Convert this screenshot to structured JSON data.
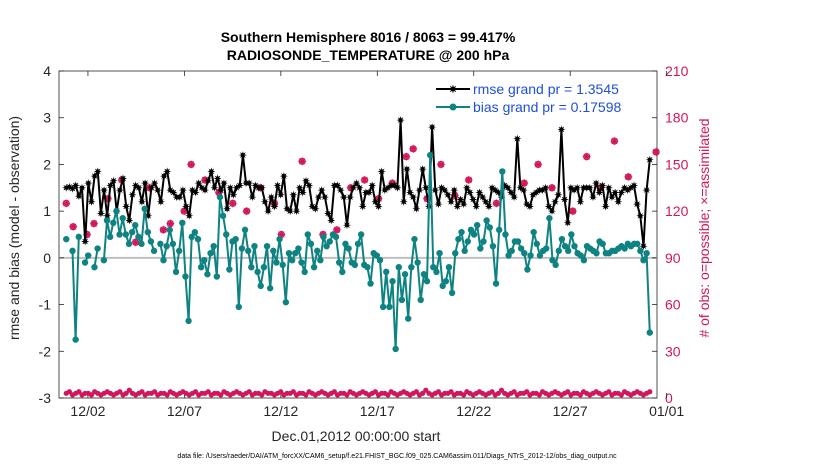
{
  "chart_data": {
    "type": "line",
    "title_line1": "Southern Hemisphere 8016 / 8063 = 99.417%",
    "title_line2": "RADIOSONDE_TEMPERATURE @ 200 hPa",
    "xlabel": "Dec.01,2012 00:00:00 start",
    "ylabel": "rmse and bias (model - observation)",
    "ylabel_right": "# of obs: o=possible; ×=assimilated",
    "footer": "data file: /Users/raeder/DAI/ATM_forcXX/CAM6_setup/f.e21.FHIST_BGC.f09_025.CAM6assim.011/Diags_NTrS_2012-12/obs_diag_output.nc",
    "xlim": [
      0.5,
      31.5
    ],
    "ylim": [
      -3,
      4
    ],
    "ylim_right": [
      0,
      210
    ],
    "x_tick_values": [
      2,
      7,
      12,
      17,
      22,
      27,
      32
    ],
    "x_tick_labels": [
      "12/02",
      "12/07",
      "12/12",
      "12/17",
      "12/22",
      "12/27",
      "01/01"
    ],
    "y_ticks": [
      -3,
      -2,
      -1,
      0,
      1,
      2,
      3,
      4
    ],
    "y_ticks_right": [
      0,
      30,
      60,
      90,
      120,
      150,
      180,
      210
    ],
    "zero_line": 0,
    "colors": {
      "rmse": "#000000",
      "bias": "#0f8282",
      "obs": "#d1175c",
      "zero": "#bfbfbf",
      "legend_text": "#1f4fd8"
    },
    "series": [
      {
        "name": "rmse grand pr = 1.3545",
        "color": "#000000",
        "values": [
          1.5,
          1.52,
          1.48,
          1.55,
          1.32,
          1.5,
          0.35,
          1.6,
          1.2,
          1.75,
          1.85,
          0.95,
          1.45,
          0.9,
          1.55,
          1.65,
          1.0,
          1.45,
          1.7,
          1.1,
          0.8,
          1.35,
          1.55,
          1.5,
          1.2,
          1.6,
          0.9,
          1.5,
          1.6,
          1.45,
          1.2,
          1.75,
          1.85,
          1.45,
          1.4,
          1.3,
          1.3,
          1.45,
          1.1,
          0.9,
          1.45,
          1.4,
          1.6,
          1.5,
          1.45,
          1.65,
          1.85,
          1.5,
          1.7,
          1.45,
          1.6,
          1.05,
          1.5,
          1.35,
          1.5,
          1.55,
          2.2,
          1.6,
          1.6,
          1.3,
          1.55,
          1.5,
          1.5,
          1.2,
          1.0,
          1.3,
          1.1,
          1.55,
          1.35,
          1.75,
          1.05,
          1.0,
          1.35,
          1.0,
          1.5,
          1.4,
          1.65,
          1.55,
          1.1,
          1.05,
          1.3,
          1.45,
          1.3,
          0.95,
          0.8,
          1.55,
          1.55,
          1.45,
          1.3,
          0.7,
          1.3,
          1.5,
          1.6,
          1.5,
          1.1,
          1.4,
          1.4,
          1.55,
          1.2,
          1.1,
          1.85,
          1.45,
          1.5,
          1.55,
          1.55,
          1.5,
          2.95,
          1.2,
          1.9,
          1.4,
          1.3,
          1.05,
          1.45,
          1.9,
          1.5,
          1.1,
          2.8,
          1.45,
          1.15,
          1.5,
          1.45,
          1.35,
          1.2,
          1.45,
          1.1,
          1.25,
          1.15,
          1.5,
          1.4,
          1.25,
          1.1,
          1.4,
          1.3,
          1.2,
          1.1,
          1.5,
          1.45,
          1.4,
          1.3,
          1.55,
          1.5,
          1.4,
          1.3,
          2.55,
          1.5,
          1.45,
          1.15,
          1.1,
          1.35,
          1.4,
          1.45,
          1.45,
          1.5,
          1.1,
          1.0,
          1.2,
          1.35,
          2.75,
          1.25,
          0.75,
          1.5,
          1.45,
          1.5,
          1.2,
          1.5,
          1.5,
          1.5,
          1.3,
          1.6,
          1.4,
          1.55,
          1.1,
          1.5,
          1.3,
          1.4,
          1.2,
          1.4,
          1.5,
          1.45,
          1.5,
          1.55,
          1.15,
          0.9,
          0.25,
          1.45,
          2.1
        ]
      },
      {
        "name": "bias grand pr = 0.17598",
        "color": "#0f8282",
        "values": [
          0.4,
          null,
          0.15,
          -1.75,
          0.45,
          null,
          -0.1,
          0.05,
          null,
          -0.2,
          0.2,
          null,
          -0.05,
          0.8,
          0.45,
          0.75,
          1.0,
          0.5,
          0.85,
          0.5,
          0.3,
          0.55,
          0.7,
          0.45,
          0.3,
          1.05,
          0.55,
          0.35,
          0.15,
          null,
          0.3,
          -0.05,
          0.25,
          0.6,
          0.3,
          -0.3,
          0.15,
          0.75,
          -0.4,
          -1.35,
          0.45,
          0.55,
          0.4,
          -0.2,
          -0.05,
          -0.35,
          0.1,
          0.25,
          -0.4,
          1.3,
          0.9,
          0.5,
          -0.25,
          0.35,
          0.4,
          -1.05,
          0.2,
          0.6,
          0.15,
          -0.2,
          0.25,
          -0.3,
          -0.6,
          -0.2,
          0.25,
          -0.65,
          0.15,
          -0.1,
          0.4,
          -0.15,
          -0.95,
          0.1,
          -0.05,
          0.1,
          0.2,
          -0.1,
          -0.3,
          0.5,
          0.3,
          -0.2,
          0.15,
          -0.05,
          0.45,
          0.25,
          0.35,
          0.5,
          0.45,
          -0.1,
          -0.3,
          0.3,
          0.2,
          -0.1,
          -0.15,
          0.3,
          0.5,
          -0.15,
          -0.2,
          -0.55,
          0.1,
          0.05,
          -0.05,
          -1.05,
          -0.3,
          -1.05,
          -0.5,
          -1.95,
          -0.2,
          -0.9,
          -0.35,
          -1.3,
          -0.2,
          0.4,
          -0.1,
          -0.9,
          -0.35,
          -0.5,
          2.2,
          -0.2,
          -0.3,
          0.1,
          -0.6,
          -0.5,
          -0.2,
          -0.75,
          0.1,
          0.4,
          0.55,
          0.15,
          0.35,
          0.6,
          0.5,
          0.7,
          0.2,
          0.35,
          0.8,
          0.65,
          0.25,
          -0.55,
          0.6,
          1.85,
          0.5,
          0.05,
          0.15,
          0.35,
          0.35,
          0.2,
          0.1,
          -0.25,
          0.05,
          0.55,
          0.3,
          0.05,
          0.15,
          0.2,
          0.85,
          -0.05,
          -0.15,
          0.15,
          0.4,
          0.25,
          0.15,
          0.5,
          0.25,
          0.1,
          0.05,
          -0.05,
          0.25,
          0.2,
          0.15,
          0.1,
          0.35,
          0.3,
          0.1,
          0.1,
          0.15,
          0.15,
          0.2,
          0.25,
          0.2,
          0.3,
          0.25,
          0.3,
          0.3,
          0.15,
          -0.05,
          0.1,
          -1.6
        ]
      }
    ],
    "obs_possible": [
      125,
      110,
      null,
      105,
      112,
      null,
      128,
      null,
      140,
      null,
      100,
      null,
      135,
      null,
      108,
      112,
      null,
      120,
      150,
      null,
      140,
      null,
      132,
      null,
      125,
      null,
      120,
      null,
      135,
      null,
      125,
      105,
      null,
      null,
      152,
      null,
      null,
      105,
      null,
      108,
      null,
      135,
      null,
      140,
      null,
      128,
      null,
      138,
      null,
      155,
      160,
      null,
      128,
      null,
      150,
      null,
      130,
      null,
      140,
      null,
      null,
      null,
      125,
      null,
      null,
      null,
      138,
      null,
      150,
      null,
      135,
      null,
      null,
      120,
      null,
      155,
      null,
      135,
      null,
      165,
      null,
      142,
      null,
      null,
      null,
      158,
      null,
      null,
      null,
      null,
      null,
      null,
      null,
      null,
      null,
      null,
      null,
      null,
      null,
      null,
      null,
      null,
      null,
      null,
      null,
      null,
      null,
      null,
      null,
      null,
      null,
      null,
      null,
      null,
      null,
      null,
      null,
      null,
      null,
      null,
      null,
      null,
      null,
      null,
      null,
      null,
      null,
      null,
      null,
      null,
      null,
      null,
      null,
      null,
      null,
      null,
      null,
      null,
      null,
      null,
      null,
      null,
      null,
      null,
      null,
      null,
      null,
      null,
      null,
      null,
      null,
      null,
      null,
      null,
      null,
      null,
      null,
      null,
      null,
      null,
      null,
      null,
      null,
      null,
      null,
      null,
      null,
      null,
      null,
      null,
      null,
      null,
      null,
      null,
      null,
      null,
      null,
      null,
      null,
      null,
      null,
      null,
      null,
      null,
      null,
      null,
      null,
      null,
      null,
      null
    ],
    "obs_assimilated": [
      125,
      110,
      null,
      105,
      112,
      null,
      128,
      null,
      140,
      null,
      100,
      null,
      135,
      null,
      108,
      112,
      null,
      120,
      150,
      null,
      140,
      null,
      132,
      null,
      125,
      null,
      120,
      null,
      135,
      null,
      125,
      105,
      null,
      null,
      152,
      null,
      null,
      105,
      null,
      108,
      null,
      135,
      null,
      140,
      null,
      128,
      null,
      138,
      null,
      155,
      160,
      null,
      128,
      null,
      150,
      null,
      130,
      null,
      140,
      null,
      null,
      null,
      125,
      null,
      null,
      null,
      138,
      null,
      150,
      null,
      135,
      null,
      null,
      120,
      null,
      155,
      null,
      135,
      null,
      165,
      null,
      142,
      null,
      null,
      null,
      158,
      null,
      null,
      null,
      null,
      null,
      null,
      null,
      null,
      null,
      null,
      null,
      null,
      null,
      null,
      null,
      null,
      null,
      null,
      null,
      null,
      null,
      null,
      null,
      null,
      null,
      null,
      null,
      null,
      null,
      null,
      null,
      null,
      null,
      null,
      null,
      null,
      null,
      null,
      null,
      null,
      null,
      null,
      null,
      null,
      null,
      null,
      null,
      null,
      null,
      null,
      null,
      null,
      null,
      null,
      null,
      null,
      null,
      null,
      null,
      null,
      null,
      null,
      null,
      null,
      null,
      null,
      null,
      null,
      null,
      null,
      null,
      null,
      null,
      null,
      null,
      null,
      null,
      null,
      null,
      null,
      null,
      null,
      null,
      null,
      null,
      null,
      null,
      null,
      null,
      null,
      null,
      null,
      null,
      null,
      null,
      null,
      null,
      null,
      null,
      null,
      null,
      null,
      null,
      null
    ],
    "obs_low_band": [
      3,
      4,
      2,
      3,
      4,
      2,
      3,
      3,
      2,
      4,
      3,
      2,
      3,
      4,
      3,
      2,
      3,
      4,
      2,
      3,
      5,
      3,
      2,
      3,
      4,
      2,
      3,
      3,
      4,
      2,
      3,
      3,
      2,
      4,
      3,
      2,
      3,
      4,
      3,
      2,
      3,
      4,
      2,
      3,
      3,
      4,
      2,
      3,
      3,
      2,
      4,
      3,
      2,
      3,
      4,
      3,
      2,
      3,
      4,
      2,
      3,
      3,
      2,
      4,
      3,
      3,
      2,
      3,
      4,
      2,
      3,
      3,
      4,
      2,
      3,
      3,
      2,
      4,
      3,
      2,
      3,
      4,
      3,
      2,
      3,
      4,
      2,
      3,
      3,
      2,
      4,
      3,
      2,
      3,
      4,
      3,
      2,
      3,
      4,
      2,
      3,
      3,
      2,
      4,
      3,
      2,
      3,
      4,
      3,
      2,
      3,
      4,
      2,
      3,
      5,
      3,
      2,
      3,
      4,
      2,
      3,
      3,
      4,
      2,
      3,
      3,
      2,
      4,
      3,
      2,
      3,
      4,
      3,
      2,
      3,
      4,
      2,
      3,
      5,
      3,
      2,
      3,
      4,
      2,
      3,
      3,
      4,
      2,
      3,
      3,
      2,
      4,
      3,
      2,
      3,
      4,
      3,
      2,
      3,
      4,
      2,
      3,
      3,
      2,
      4,
      3,
      2,
      3,
      4,
      3,
      2,
      3,
      4,
      2,
      3,
      3,
      2,
      4,
      3,
      2,
      3,
      4,
      3,
      2,
      3,
      4
    ]
  }
}
